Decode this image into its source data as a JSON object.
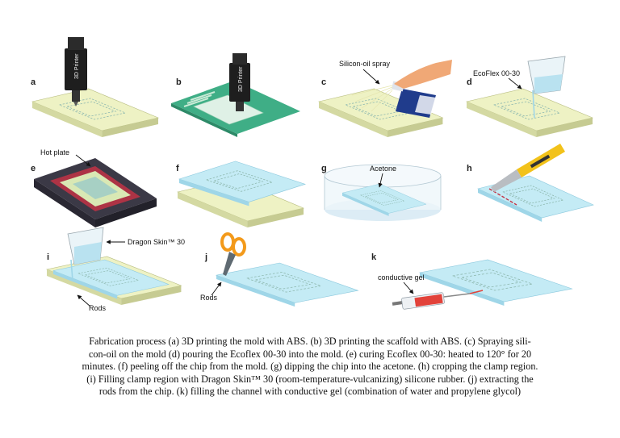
{
  "panels": {
    "a": {
      "label": "a",
      "printer_text": "3D Printer"
    },
    "b": {
      "label": "b",
      "printer_text": "3D Printer"
    },
    "c": {
      "label": "c",
      "annotation": "Silicon-oil spray"
    },
    "d": {
      "label": "d",
      "annotation": "EcoFlex 00-30"
    },
    "e": {
      "label": "e",
      "annotation": "Hot plate"
    },
    "f": {
      "label": "f"
    },
    "g": {
      "label": "g",
      "annotation": "Acetone"
    },
    "h": {
      "label": "h"
    },
    "i": {
      "label": "i",
      "annotation": "Dragon Skin™ 30",
      "rods": "Rods"
    },
    "j": {
      "label": "j",
      "rods": "Rods"
    },
    "k": {
      "label": "k",
      "annotation": "conductive gel"
    }
  },
  "caption": {
    "lines": [
      "Fabrication process (a) 3D printing the mold with ABS. (b) 3D printing the scaffold with ABS. (c) Spraying sili-",
      "con-oil on the mold (d) pouring the Ecoflex 00-30 into the mold. (e) curing Ecoflex 00-30: heated to 120° for 20",
      "minutes. (f) peeling off the chip from the mold. (g) dipping the chip into the acetone. (h) cropping the clamp region.",
      "(i) Filling clamp region with  Dragon Skin™ 30 (room-temperature-vulcanizing) silicone rubber. (j) extracting the",
      "rods from the chip. (k) filling the channel with conductive gel (combination of water and propylene glycol)"
    ]
  },
  "colors": {
    "mold_top": "#eef2c4",
    "mold_side": "#d4d9a2",
    "chip": "#bfe8f3",
    "scaffold_board": "#3fae86",
    "printer": "#1e1e1e",
    "hot_plate": "#3b3946",
    "heat": "#c23345",
    "hand": "#f0a876",
    "can": "#203c8c",
    "cutter": "#f2c21a",
    "scissors": "#f39a1b",
    "syringe_gel": "#e2423a"
  }
}
